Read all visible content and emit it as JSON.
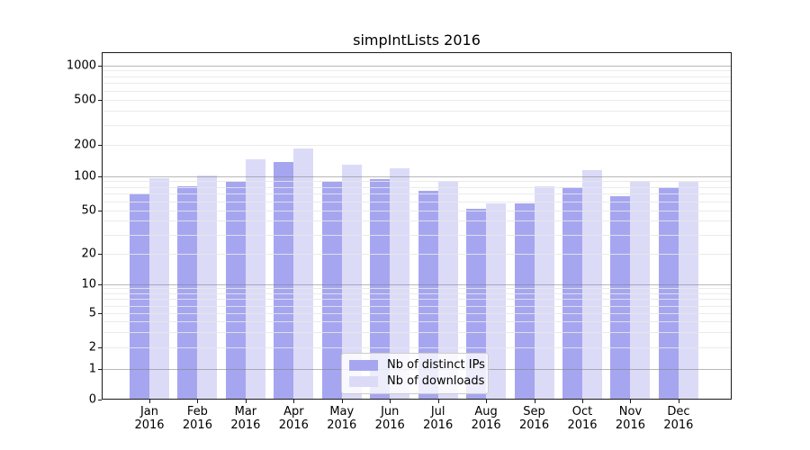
{
  "chart_data": {
    "type": "bar",
    "title": "simpIntLists 2016",
    "categories": [
      "Jan",
      "Feb",
      "Mar",
      "Apr",
      "May",
      "Jun",
      "Jul",
      "Aug",
      "Sep",
      "Oct",
      "Nov",
      "Dec"
    ],
    "x_tick_year": "2016",
    "series": [
      {
        "name": "Nb of distinct IPs",
        "color": "#a6a6f0",
        "values": [
          70,
          81,
          89,
          137,
          89,
          94,
          74,
          51,
          57,
          80,
          67,
          80
        ]
      },
      {
        "name": "Nb of downloads",
        "color": "#dbdbf8",
        "values": [
          96,
          101,
          145,
          185,
          130,
          119,
          91,
          57,
          81,
          115,
          90,
          89
        ]
      }
    ],
    "y_ticks": [
      0,
      1,
      2,
      5,
      10,
      20,
      50,
      100,
      200,
      500,
      1000
    ],
    "yaxis_scale": "pseudo-log",
    "ylim": [
      0,
      1200
    ],
    "grid": "horizontal",
    "legend_position": "lower center"
  }
}
